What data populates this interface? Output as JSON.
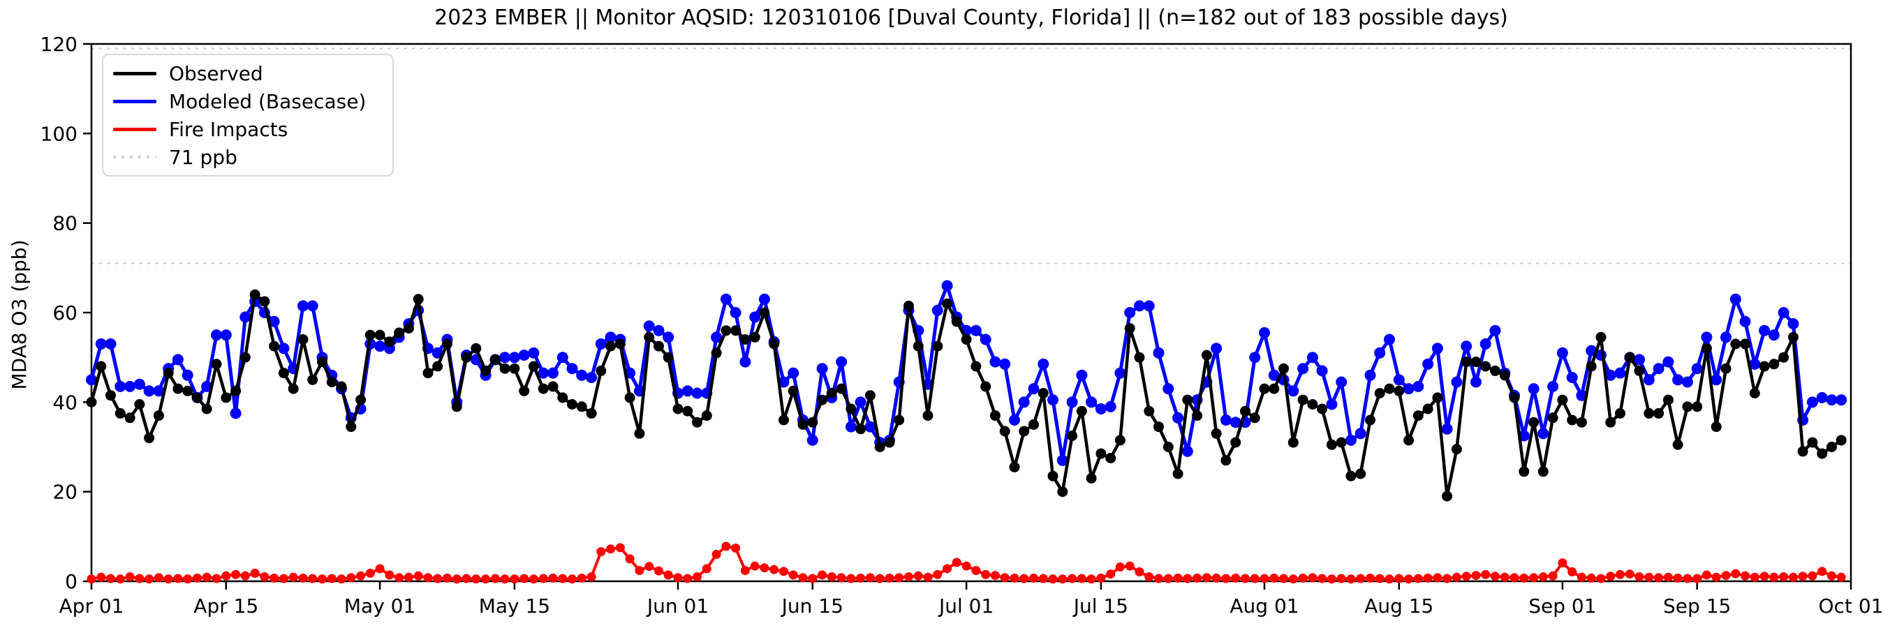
{
  "chart_data": {
    "type": "line",
    "title": "2023 EMBER || Monitor AQSID: 120310106 [Duval County, Florida] || (n=182 out of 183 possible days)",
    "xlabel": "",
    "ylabel": "MDA8 O3 (ppb)",
    "ylim": [
      0,
      120
    ],
    "yticks": [
      0,
      20,
      40,
      60,
      80,
      100,
      120
    ],
    "x_start": "2023-04-01",
    "x_end": "2023-09-30",
    "n_days": 183,
    "x_ticks": {
      "labels": [
        "Apr 01",
        "Apr 15",
        "May 01",
        "May 15",
        "Jun 01",
        "Jun 15",
        "Jul 01",
        "Jul 15",
        "Aug 01",
        "Aug 15",
        "Sep 01",
        "Sep 15",
        "Oct 01"
      ],
      "day_offsets": [
        0,
        14,
        30,
        44,
        61,
        75,
        91,
        105,
        122,
        136,
        153,
        167,
        183
      ]
    },
    "grid": false,
    "legend_position": "upper left",
    "ref_lines": [
      {
        "value": 71,
        "label": "71 ppb",
        "color": "#cfcfcf",
        "style": "dotted"
      },
      {
        "value": 119,
        "label": "",
        "color": "#cfcfcf",
        "style": "dotted"
      }
    ],
    "series": [
      {
        "name": "Observed",
        "color": "#000000",
        "values": [
          40,
          48,
          41.5,
          37.5,
          36.5,
          39.5,
          32,
          37,
          46.5,
          43,
          42.5,
          41,
          38.5,
          48.5,
          41,
          42.5,
          50,
          64,
          62.5,
          52.5,
          46.5,
          43,
          54,
          45,
          49,
          44.5,
          43.5,
          34.5,
          40.5,
          55,
          55,
          53.5,
          55.5,
          56.5,
          63,
          46.5,
          48,
          53,
          39,
          50,
          52,
          47,
          49.5,
          47.5,
          47.5,
          42.5,
          48,
          43,
          43.5,
          41,
          39.5,
          39,
          37.5,
          47,
          52.5,
          53,
          41,
          33,
          54.5,
          52.5,
          50,
          38.5,
          38,
          35.5,
          37,
          51,
          56,
          56,
          54,
          54.5,
          60,
          53,
          36,
          42.5,
          35,
          35.5,
          40.5,
          42,
          43,
          38.5,
          34,
          41.5,
          30,
          31,
          36,
          61.5,
          52.5,
          37,
          52.5,
          62,
          58,
          54,
          48,
          43.5,
          37,
          33.5,
          25.5,
          33.5,
          35,
          42,
          23.5,
          20,
          32.5,
          38,
          23,
          28.5,
          27.5,
          31.5,
          56.5,
          50,
          38,
          34.5,
          30,
          24,
          40.5,
          37,
          50.5,
          33,
          27,
          31,
          38,
          36.5,
          43,
          43,
          47.5,
          31,
          40.5,
          39.5,
          38.5,
          30.5,
          31,
          23.5,
          24,
          36,
          42,
          43,
          42.5,
          31.5,
          37,
          38.5,
          41,
          19,
          29.5,
          49,
          49,
          48,
          47,
          46,
          41,
          24.5,
          35.5,
          24.5,
          36.5,
          40.5,
          36,
          35.5,
          48,
          54.5,
          35.5,
          37.5,
          50,
          47,
          37.5,
          37.5,
          40.5,
          30.5,
          39,
          39,
          52,
          34.5,
          47.5,
          53,
          53,
          42,
          48,
          48.5,
          50,
          54.5,
          29,
          31,
          28.5,
          30,
          31.5
        ]
      },
      {
        "name": "Modeled (Basecase)",
        "color": "#0000ff",
        "values": [
          45,
          53,
          53,
          43.5,
          43.5,
          44,
          42.5,
          42.5,
          47.5,
          49.5,
          46,
          41,
          43.5,
          55,
          55,
          37.5,
          59,
          62.5,
          60,
          58,
          52,
          47.5,
          61.5,
          61.5,
          50,
          46,
          43,
          36.5,
          38.5,
          53,
          52.5,
          52,
          54.5,
          57.5,
          60.5,
          52,
          51,
          54,
          40,
          50.5,
          49.5,
          46,
          49.5,
          50,
          50,
          50.5,
          51,
          46.5,
          46.5,
          50,
          47.5,
          46,
          45.5,
          53,
          54.5,
          54,
          46.5,
          42.5,
          57,
          56,
          54.5,
          42,
          42.5,
          42,
          42,
          54.5,
          63,
          60,
          49,
          59,
          63,
          53.5,
          44.5,
          46.5,
          36,
          31.5,
          47.5,
          41,
          49,
          34.5,
          40,
          34.5,
          31,
          31.5,
          44.5,
          60.5,
          56,
          44,
          60.5,
          66,
          59,
          56,
          56,
          54,
          49,
          48.5,
          36,
          40,
          43,
          48.5,
          40.5,
          27,
          40,
          46,
          40,
          38.5,
          39,
          46.5,
          60,
          61.5,
          61.5,
          51,
          43,
          36.5,
          29,
          40.5,
          44.5,
          52,
          36,
          35.5,
          35.5,
          50,
          55.5,
          46,
          45,
          42.5,
          47.5,
          50,
          47,
          39.5,
          44.5,
          31.5,
          33,
          46,
          51,
          54,
          45,
          43,
          43.5,
          48.5,
          52,
          34,
          44.5,
          52.5,
          44.5,
          53,
          56,
          46.5,
          41.5,
          32.5,
          43,
          33,
          43.5,
          51,
          45.5,
          41.5,
          51.5,
          50.5,
          46,
          46.5,
          50,
          49.5,
          45,
          47.5,
          49,
          45,
          44.5,
          47.5,
          54.5,
          45,
          54.5,
          63,
          58,
          48.5,
          56,
          55,
          60,
          57.5,
          36,
          40,
          41,
          40.5,
          40.5
        ]
      },
      {
        "name": "Fire Impacts",
        "color": "#ff0000",
        "values": [
          0.5,
          0.9,
          0.6,
          0.5,
          1,
          0.6,
          0.5,
          0.8,
          0.5,
          0.6,
          0.5,
          0.7,
          0.9,
          0.6,
          1.2,
          1.5,
          1.2,
          1.8,
          1,
          0.7,
          0.6,
          0.9,
          0.7,
          0.6,
          0.5,
          0.6,
          0.5,
          0.8,
          1.2,
          1.8,
          2.8,
          1.4,
          0.8,
          0.9,
          1.2,
          0.8,
          0.6,
          0.7,
          0.5,
          0.6,
          0.5,
          0.5,
          0.6,
          0.5,
          0.5,
          0.6,
          0.5,
          0.6,
          0.7,
          0.6,
          0.5,
          0.7,
          1,
          6.6,
          7.2,
          7.5,
          5,
          2.4,
          3.3,
          2.3,
          1.4,
          0.8,
          0.6,
          1,
          2.8,
          6,
          7.8,
          7.4,
          2.4,
          3.4,
          3,
          2.6,
          2.2,
          1.4,
          0.8,
          0.6,
          1.4,
          1,
          0.8,
          0.6,
          0.7,
          0.8,
          0.6,
          0.7,
          0.8,
          1,
          1.2,
          0.9,
          1.5,
          2.8,
          4.2,
          3.4,
          2.4,
          1.5,
          1.3,
          0.8,
          0.7,
          0.6,
          0.7,
          0.6,
          0.5,
          0.5,
          0.6,
          0.6,
          0.5,
          0.7,
          1.6,
          3.2,
          3.4,
          2.1,
          1,
          0.6,
          0.6,
          0.7,
          0.6,
          0.7,
          0.8,
          0.7,
          0.6,
          0.7,
          0.6,
          0.6,
          0.6,
          0.7,
          0.6,
          0.5,
          0.7,
          0.8,
          0.6,
          0.5,
          0.6,
          0.5,
          0.6,
          0.7,
          0.6,
          0.5,
          0.6,
          0.5,
          0.6,
          0.7,
          0.8,
          0.6,
          0.9,
          1.1,
          1.3,
          1.5,
          1.1,
          0.9,
          0.8,
          0.7,
          0.8,
          1,
          1.2,
          4.1,
          2.1,
          0.9,
          0.7,
          0.6,
          1.1,
          1.5,
          1.6,
          1,
          0.9,
          0.8,
          0.9,
          0.7,
          0.6,
          0.6,
          1.4,
          0.9,
          1.3,
          1.7,
          1.2,
          0.9,
          1.1,
          0.9,
          1,
          0.9,
          1.1,
          1.2,
          2.2,
          1.2,
          0.9
        ]
      }
    ]
  },
  "legend": {
    "items": [
      {
        "label": "Observed",
        "color": "#000000",
        "style": "solid"
      },
      {
        "label": "Modeled (Basecase)",
        "color": "#0000ff",
        "style": "solid"
      },
      {
        "label": "Fire Impacts",
        "color": "#ff0000",
        "style": "solid"
      },
      {
        "label": "71 ppb",
        "color": "#cfcfcf",
        "style": "dotted"
      }
    ]
  }
}
